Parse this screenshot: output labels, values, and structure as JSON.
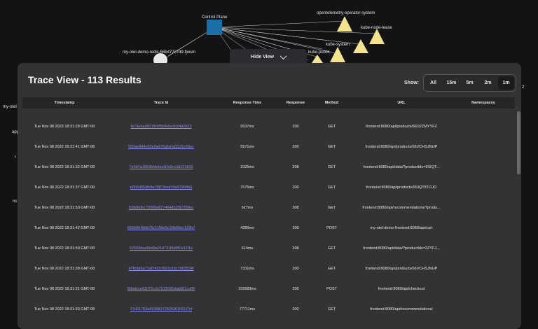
{
  "graph": {
    "control_plane_label": "Control Plane",
    "node_labels": {
      "otel_operator": "opentelemetry-operator-system",
      "kube_node_lease": "kube-node-lease",
      "kube_system": "kube-system",
      "kube_public": "kube-public",
      "redis": "my-otel-demo-redis-56b477c7d9-fjwsm",
      "partial_left": "my-otel",
      "partial_app": "app",
      "partial_r": "r",
      "partial_ns": "ns",
      "partial_right": "2"
    }
  },
  "hide_view": {
    "label": "Hide View"
  },
  "panel": {
    "title": "Trace View - 113 Results",
    "show_label": "Show:",
    "ranges": [
      "All",
      "15m",
      "5m",
      "2m",
      "1m"
    ],
    "active_range": "1m"
  },
  "table": {
    "headers": {
      "timestamp": "Timestamp",
      "trace_id": "Trace Id",
      "response_time": "Response Time",
      "response": "Response",
      "method": "Method",
      "url": "URL",
      "namespaces": "Namespaces"
    },
    "rows": [
      {
        "timestamp": "Tue Nov 08 2022 18:31:28 GMT-08",
        "trace_id": "fe79ebad821fb9f5b9ebe9c94d2003",
        "response_time": "5537ms",
        "response": "200",
        "method": "GET",
        "url": "frontend:8080/api/products/6E92ZMYYFZ"
      },
      {
        "timestamp": "Tue Nov 08 2022 18:31:41 GMT-08",
        "trace_id": "550ae9d4c62e2a670a5e1d3121c56ec",
        "response_time": "5571ms",
        "response": "200",
        "method": "GET",
        "url": "frontend:8080/api/products/66VCHSJNUP"
      },
      {
        "timestamp": "Tue Nov 08 2022 18:31:32 GMT-08",
        "trace_id": "7e0d7a1853bfdebad1fe9cc3d221810",
        "response_time": "2325ms",
        "response": "308",
        "method": "GET",
        "url": "frontend:8080/api/data/?productIds=9SIQT..."
      },
      {
        "timestamp": "Tue Nov 08 2022 18:31:37 GMT-08",
        "trace_id": "e006d05dfc8e75f71bad10e87968b9",
        "response_time": "7575ms",
        "response": "200",
        "method": "GET",
        "url": "frontend:8080/api/products/9SIQT8TOJO"
      },
      {
        "timestamp": "Tue Nov 08 2022 18:31:50 GMT-08",
        "trace_id": "598db0bc70099a877464d52f97289ec",
        "response_time": "627ms",
        "response": "308",
        "method": "GET",
        "url": "frontend:8080/api/recommendations/?produ..."
      },
      {
        "timestamp": "Tue Nov 08 2022 18:31:42 GMT-08",
        "trace_id": "692b9648db75c1106e5c33b90ec122b7",
        "response_time": "4399ms",
        "response": "200",
        "method": "POST",
        "url": "my-otel-demo-frontend:8080/api/cart"
      },
      {
        "timestamp": "Tue Nov 08 2022 18:31:50 GMT-08",
        "trace_id": "62569daa5bd9a06d7318b8ff7e31f1a",
        "response_time": "614ms",
        "response": "308",
        "method": "GET",
        "url": "frontend:8080/api/data/?productIds=2ZYFJ..."
      },
      {
        "timestamp": "Tue Nov 08 2022 18:31:38 GMT-08",
        "trace_id": "47fb9d6a71af74157831b16c7b63524f",
        "response_time": "7331ms",
        "response": "200",
        "method": "GET",
        "url": "frontend:8080/api/products/66VCHSJNUP"
      },
      {
        "timestamp": "Tue Nov 08 2022 18:31:31 GMT-08",
        "trace_id": "86bdcce63072ccb7512095dab081ca95",
        "response_time": "159583ms",
        "response": "200",
        "method": "POST",
        "url": "frontend:8080/api/checkout"
      },
      {
        "timestamp": "Tue Nov 08 2022 18:31:33 GMT-08",
        "trace_id": "77d21763a55368172825301661f7cf",
        "response_time": "77711ms",
        "response": "200",
        "method": "GET",
        "url": "frontend:8080/api/recommendations/"
      }
    ]
  }
}
